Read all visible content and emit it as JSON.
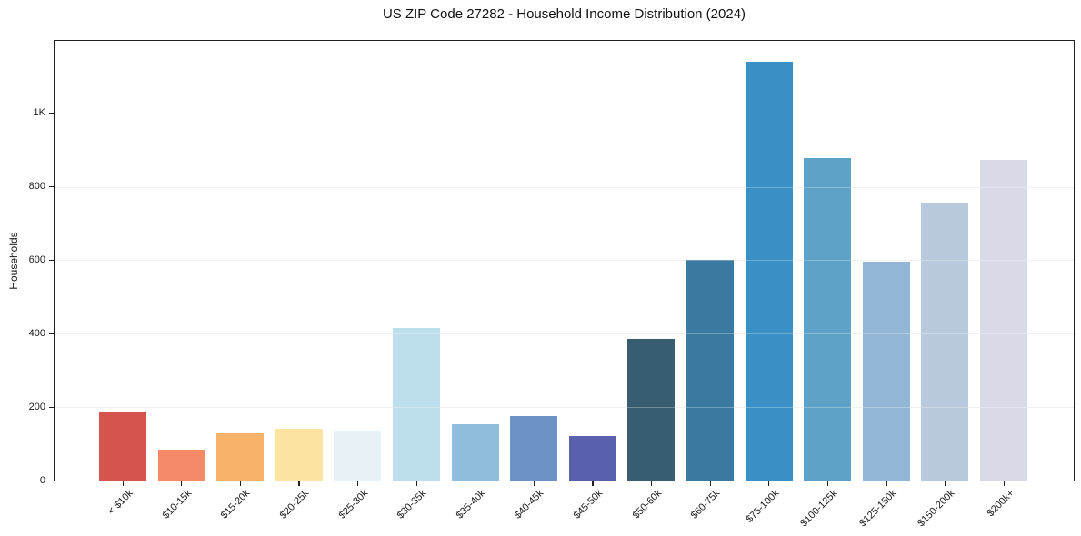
{
  "page": {
    "background": "#ffffff",
    "text_color": "#1a1a1a"
  },
  "chart_data": {
    "type": "bar",
    "title": "US ZIP Code 27282 - Household Income Distribution (2024)",
    "xlabel": "",
    "ylabel": "Households",
    "categories": [
      "< $10k",
      "$10-15k",
      "$15-20k",
      "$20-25k",
      "$25-30k",
      "$30-35k",
      "$35-40k",
      "$40-45k",
      "$45-50k",
      "$50-60k",
      "$60-75k",
      "$75-100k",
      "$100-125k",
      "$125-150k",
      "$150-200k",
      "$200k+"
    ],
    "values": [
      185,
      84,
      128,
      142,
      137,
      415,
      153,
      175,
      121,
      387,
      602,
      1140,
      877,
      595,
      758,
      872
    ],
    "bar_colors": [
      "#d5544e",
      "#f58a68",
      "#f9b269",
      "#fde3a2",
      "#e7f2f7",
      "#bddeec",
      "#90bcdd",
      "#6b93c6",
      "#5a5fae",
      "#395d70",
      "#3a7aa1",
      "#3a90c4",
      "#5ea3c7",
      "#93b5d6",
      "#b9c9dd",
      "#d8dae7"
    ],
    "ylim": [
      0,
      1197
    ],
    "yticks": [
      {
        "v": 0,
        "label": "0"
      },
      {
        "v": 200,
        "label": "200"
      },
      {
        "v": 400,
        "label": "400"
      },
      {
        "v": 600,
        "label": "600"
      },
      {
        "v": 800,
        "label": "800"
      },
      {
        "v": 1000,
        "label": "1K"
      }
    ],
    "grid": "horizontal",
    "legend": "none",
    "x_tick_rotation_deg": 45
  }
}
